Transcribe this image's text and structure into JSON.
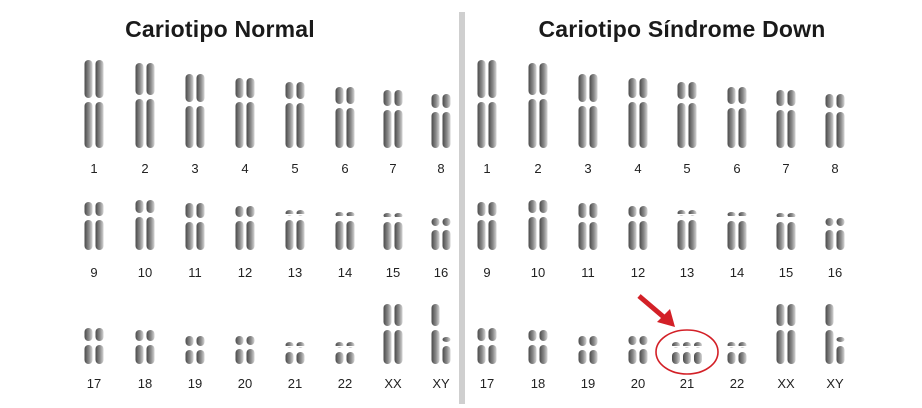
{
  "panels": [
    {
      "title": "Cariotipo Normal",
      "labels": [
        "1",
        "2",
        "3",
        "4",
        "5",
        "6",
        "7",
        "8",
        "9",
        "10",
        "11",
        "12",
        "13",
        "14",
        "15",
        "16",
        "17",
        "18",
        "19",
        "20",
        "21",
        "22",
        "XX",
        "XY"
      ]
    },
    {
      "title": "Cariotipo Síndrome Down",
      "labels": [
        "1",
        "2",
        "3",
        "4",
        "5",
        "6",
        "7",
        "8",
        "9",
        "10",
        "11",
        "12",
        "13",
        "14",
        "15",
        "16",
        "17",
        "18",
        "19",
        "20",
        "21",
        "22",
        "XX",
        "XY"
      ],
      "highlight": "21"
    }
  ],
  "colors": {
    "chromosome_dark": "#555555",
    "chromosome_light": "#c9c9c9",
    "highlight": "#d32027",
    "divider": "#cfcfcf"
  }
}
